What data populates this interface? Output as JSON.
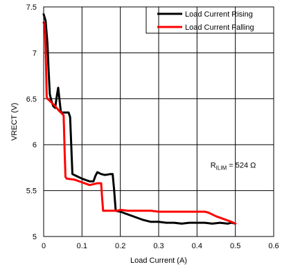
{
  "chart_data": {
    "type": "line",
    "xlabel": "Load Current (A)",
    "ylabel": "VRECT (V)",
    "xlim": [
      0,
      0.6
    ],
    "ylim": [
      5,
      7.5
    ],
    "x_ticks": [
      "0",
      "0.1",
      "0.2",
      "0.3",
      "0.4",
      "0.5",
      "0.6"
    ],
    "y_ticks": [
      "5",
      "5.5",
      "6",
      "6.5",
      "7",
      "7.5"
    ],
    "grid": true,
    "legend_position": "top-right",
    "annotation": {
      "main": "R",
      "sub": "ILIM",
      "rest": " = 524 Ω",
      "x": 0.435,
      "y": 5.75
    },
    "series": [
      {
        "name": "Load Current Rising",
        "color": "#000000",
        "points": [
          [
            0.0,
            7.42
          ],
          [
            0.005,
            7.35
          ],
          [
            0.01,
            7.1
          ],
          [
            0.013,
            6.8
          ],
          [
            0.016,
            6.55
          ],
          [
            0.02,
            6.48
          ],
          [
            0.025,
            6.42
          ],
          [
            0.03,
            6.4
          ],
          [
            0.035,
            6.55
          ],
          [
            0.038,
            6.62
          ],
          [
            0.041,
            6.5
          ],
          [
            0.045,
            6.35
          ],
          [
            0.055,
            6.35
          ],
          [
            0.065,
            6.35
          ],
          [
            0.069,
            6.3
          ],
          [
            0.072,
            6.0
          ],
          [
            0.075,
            5.68
          ],
          [
            0.085,
            5.66
          ],
          [
            0.1,
            5.63
          ],
          [
            0.12,
            5.6
          ],
          [
            0.13,
            5.6
          ],
          [
            0.135,
            5.66
          ],
          [
            0.14,
            5.7
          ],
          [
            0.15,
            5.68
          ],
          [
            0.16,
            5.67
          ],
          [
            0.175,
            5.68
          ],
          [
            0.18,
            5.68
          ],
          [
            0.184,
            5.5
          ],
          [
            0.188,
            5.28
          ],
          [
            0.2,
            5.27
          ],
          [
            0.22,
            5.24
          ],
          [
            0.24,
            5.21
          ],
          [
            0.26,
            5.18
          ],
          [
            0.28,
            5.16
          ],
          [
            0.3,
            5.16
          ],
          [
            0.32,
            5.15
          ],
          [
            0.34,
            5.15
          ],
          [
            0.36,
            5.14
          ],
          [
            0.38,
            5.15
          ],
          [
            0.4,
            5.15
          ],
          [
            0.42,
            5.15
          ],
          [
            0.44,
            5.14
          ],
          [
            0.46,
            5.15
          ],
          [
            0.48,
            5.14
          ],
          [
            0.49,
            5.15
          ],
          [
            0.5,
            5.14
          ]
        ]
      },
      {
        "name": "Load Current Falling",
        "color": "#ff0000",
        "points": [
          [
            0.5,
            5.14
          ],
          [
            0.49,
            5.16
          ],
          [
            0.47,
            5.19
          ],
          [
            0.45,
            5.22
          ],
          [
            0.43,
            5.26
          ],
          [
            0.42,
            5.27
          ],
          [
            0.4,
            5.27
          ],
          [
            0.38,
            5.27
          ],
          [
            0.36,
            5.27
          ],
          [
            0.34,
            5.27
          ],
          [
            0.32,
            5.27
          ],
          [
            0.3,
            5.27
          ],
          [
            0.28,
            5.28
          ],
          [
            0.26,
            5.28
          ],
          [
            0.24,
            5.28
          ],
          [
            0.22,
            5.28
          ],
          [
            0.2,
            5.29
          ],
          [
            0.19,
            5.28
          ],
          [
            0.175,
            5.28
          ],
          [
            0.16,
            5.28
          ],
          [
            0.155,
            5.28
          ],
          [
            0.152,
            5.45
          ],
          [
            0.15,
            5.58
          ],
          [
            0.14,
            5.58
          ],
          [
            0.12,
            5.56
          ],
          [
            0.1,
            5.59
          ],
          [
            0.08,
            5.62
          ],
          [
            0.06,
            5.63
          ],
          [
            0.057,
            5.65
          ],
          [
            0.055,
            5.9
          ],
          [
            0.053,
            6.2
          ],
          [
            0.052,
            6.32
          ],
          [
            0.045,
            6.35
          ],
          [
            0.04,
            6.37
          ],
          [
            0.03,
            6.42
          ],
          [
            0.02,
            6.46
          ],
          [
            0.01,
            6.5
          ],
          [
            0.008,
            6.52
          ],
          [
            0.006,
            6.9
          ],
          [
            0.004,
            7.2
          ],
          [
            0.002,
            7.32
          ],
          [
            0.0,
            7.33
          ]
        ]
      }
    ]
  }
}
